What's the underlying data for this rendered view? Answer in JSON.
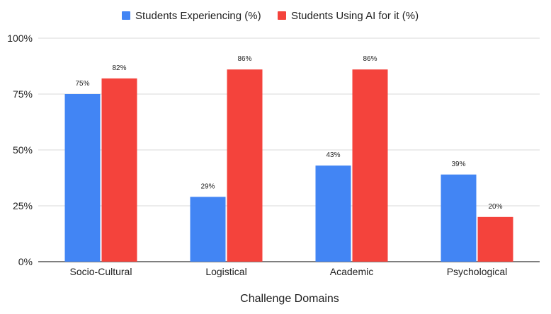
{
  "chart_data": {
    "type": "bar",
    "title": "",
    "xlabel": "Challenge Domains",
    "ylabel": "",
    "categories": [
      "Socio-Cultural",
      "Logistical",
      "Academic",
      "Psychological"
    ],
    "series": [
      {
        "name": "Students Experiencing (%)",
        "color": "#4285F4",
        "values": [
          75,
          29,
          43,
          39
        ],
        "labels": [
          "75%",
          "29%",
          "43%",
          "39%"
        ]
      },
      {
        "name": "Students Using AI for it (%)",
        "color": "#F4433C",
        "values": [
          82,
          86,
          86,
          20
        ],
        "labels": [
          "82%",
          "86%",
          "86%",
          "20%"
        ]
      }
    ],
    "ylim": [
      0,
      100
    ],
    "yticks": [
      0,
      25,
      50,
      75,
      100
    ],
    "ytick_labels": [
      "0%",
      "25%",
      "50%",
      "75%",
      "100%"
    ],
    "grid": true,
    "legend_position": "top-center"
  }
}
